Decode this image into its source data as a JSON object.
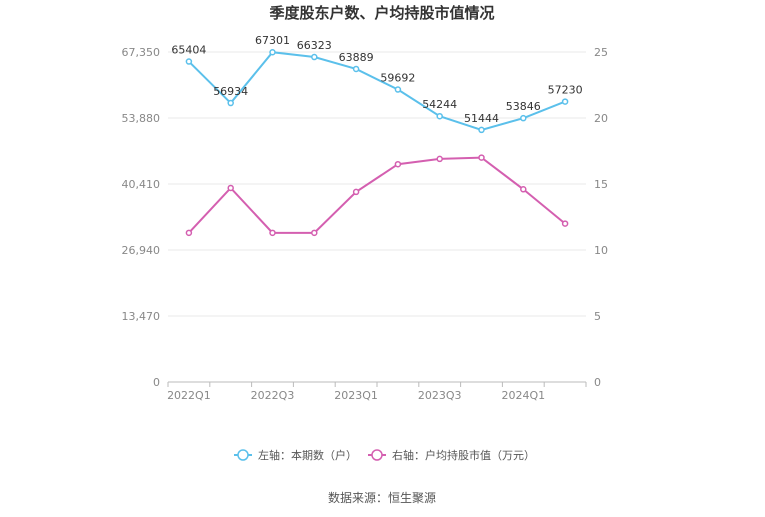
{
  "chart_data": {
    "type": "line",
    "title": "季度股东户数、户均持股市值情况",
    "categories": [
      "2022Q1",
      "2022Q2",
      "2022Q3",
      "2022Q4",
      "2023Q1",
      "2023Q2",
      "2023Q3",
      "2023Q4",
      "2024Q1",
      "2024Q2"
    ],
    "x_tick_labels": [
      "2022Q1",
      "2022Q3",
      "2023Q1",
      "2023Q3",
      "2024Q1"
    ],
    "left_axis": {
      "ylim": [
        0,
        67350
      ],
      "tick_labels": [
        "0",
        "13,470",
        "26,940",
        "40,410",
        "53,880",
        "67,350"
      ]
    },
    "right_axis": {
      "ylim": [
        0,
        25
      ],
      "tick_labels": [
        "0",
        "5",
        "10",
        "15",
        "20",
        "25"
      ]
    },
    "series": [
      {
        "name": "左轴：本期数（户）",
        "axis": "left",
        "color": "#5bc0eb",
        "values": [
          65404,
          56934,
          67301,
          66323,
          63889,
          59692,
          54244,
          51444,
          53846,
          57230
        ]
      },
      {
        "name": "右轴：户均持股市值（万元）",
        "axis": "right",
        "color": "#d45fb0",
        "values": [
          11.3,
          14.7,
          11.3,
          11.3,
          14.4,
          16.5,
          16.9,
          17.0,
          14.6,
          12.0
        ]
      }
    ],
    "grid": "horizontal",
    "legend_position": "bottom"
  },
  "source": "数据来源：恒生聚源"
}
